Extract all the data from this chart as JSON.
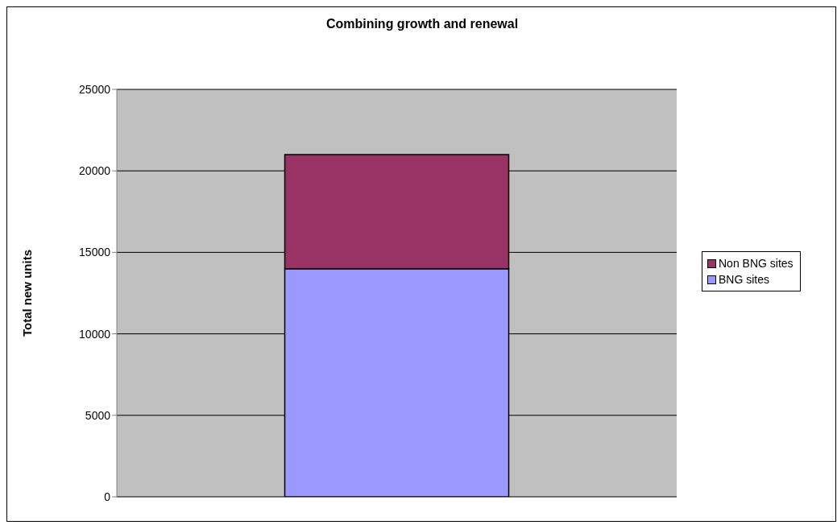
{
  "chart_data": {
    "type": "bar",
    "title": "Combining growth and renewal",
    "ylabel": "Total new units",
    "categories": [
      null
    ],
    "stacked": true,
    "series": [
      {
        "name": "BNG sites",
        "color": "#9999ff",
        "values": [
          14000
        ]
      },
      {
        "name": "Non BNG sites",
        "color": "#993366",
        "values": [
          7000
        ]
      }
    ],
    "ylim": [
      0,
      25000
    ],
    "yticks": [
      0,
      5000,
      10000,
      15000,
      20000,
      25000
    ],
    "grid": "y",
    "legend": "right"
  }
}
